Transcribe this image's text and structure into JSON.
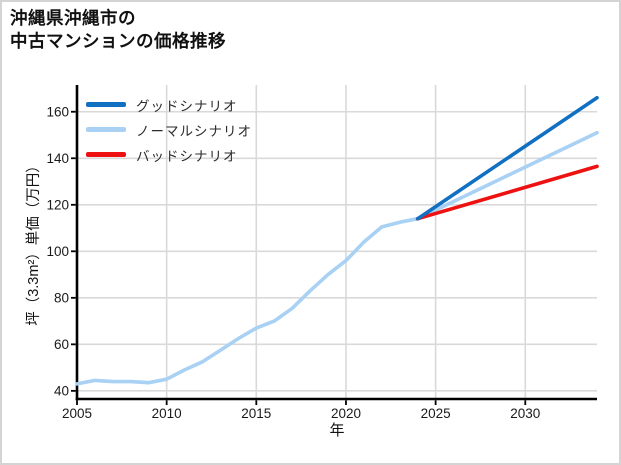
{
  "page": {
    "background": "#ffffff",
    "card_border_color": "#d4d4d4",
    "grid_color": "#d9d9d9",
    "spine_color": "#000000",
    "tick_label_color": "#1a1a1a"
  },
  "title": {
    "text": "沖縄県沖縄市の\n中古マンションの価格推移"
  },
  "legend": {
    "items": [
      {
        "label": "グッドシナリオ",
        "color": "#1170c2"
      },
      {
        "label": "ノーマルシナリオ",
        "color": "#a8d1f4"
      },
      {
        "label": "バッドシナリオ",
        "color": "#ee1111"
      }
    ]
  },
  "chart_data": {
    "type": "line",
    "title": "沖縄県沖縄市の中古マンションの価格推移",
    "xlabel": "年",
    "ylabel": "坪（3.3m²）単価（万円）",
    "xlim": [
      2005,
      2034
    ],
    "ylim": [
      36.5,
      171.5
    ],
    "x_ticks": [
      2005,
      2010,
      2015,
      2020,
      2025,
      2030
    ],
    "y_ticks": [
      40,
      60,
      80,
      100,
      120,
      140,
      160
    ],
    "grid": true,
    "legend_position": "upper-left",
    "series": [
      {
        "name": "グッドシナリオ",
        "color": "#1170c2",
        "zorder": 3,
        "x": [
          2024,
          2034
        ],
        "y": [
          114,
          166
        ]
      },
      {
        "name": "ノーマルシナリオ",
        "color": "#a8d1f4",
        "zorder": 1,
        "x": [
          2005,
          2006,
          2007,
          2008,
          2009,
          2010,
          2011,
          2012,
          2013,
          2014,
          2015,
          2016,
          2017,
          2018,
          2019,
          2020,
          2021,
          2022,
          2023,
          2024,
          2034
        ],
        "y": [
          43,
          44.5,
          44,
          44,
          43.5,
          45,
          49,
          52.5,
          57.5,
          62.5,
          67,
          70,
          75.5,
          83,
          90,
          96,
          104,
          110.5,
          112.5,
          114,
          151
        ]
      },
      {
        "name": "バッドシナリオ",
        "color": "#ee1111",
        "zorder": 2,
        "x": [
          2024,
          2034
        ],
        "y": [
          114,
          136.5
        ]
      }
    ]
  }
}
